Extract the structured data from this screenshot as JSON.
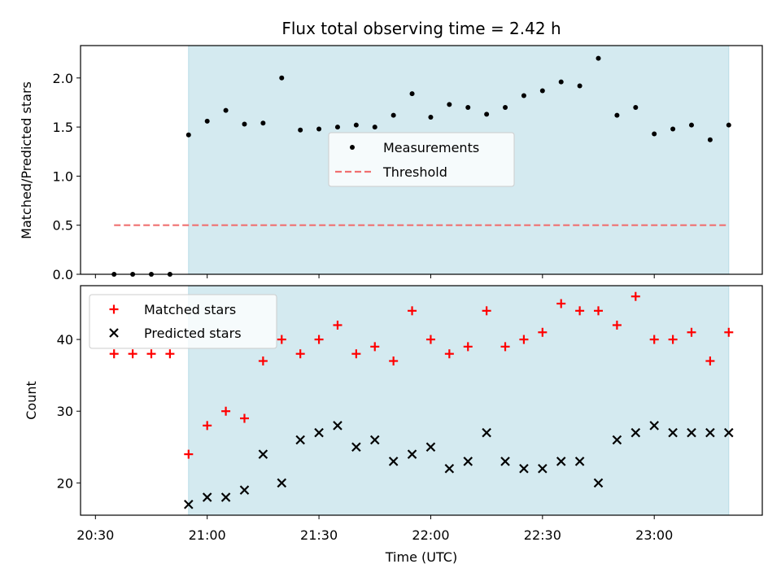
{
  "chart_data": [
    {
      "type": "scatter",
      "title": "Flux total observing time = 2.42 h",
      "xlabel": "",
      "ylabel": "Matched/Predicted stars",
      "ylim": [
        0,
        2.33
      ],
      "yticks": [
        "0.0",
        "0.5",
        "1.0",
        "1.5",
        "2.0"
      ],
      "shaded_region": {
        "start": "20:55",
        "end": "23:20",
        "color": "#d4eaf0"
      },
      "threshold_line": {
        "value": 0.5,
        "from": "20:35",
        "to": "23:20",
        "color": "#f07070"
      },
      "legend": {
        "placement": "center",
        "entries": [
          "Measurements",
          "Threshold"
        ]
      },
      "series": [
        {
          "name": "Measurements",
          "x": [
            "20:35",
            "20:40",
            "20:45",
            "20:50",
            "20:55",
            "21:00",
            "21:05",
            "21:10",
            "21:15",
            "21:20",
            "21:25",
            "21:30",
            "21:35",
            "21:40",
            "21:45",
            "21:50",
            "21:55",
            "22:00",
            "22:05",
            "22:10",
            "22:15",
            "22:20",
            "22:25",
            "22:30",
            "22:35",
            "22:40",
            "22:45",
            "22:50",
            "22:55",
            "23:00",
            "23:05",
            "23:10",
            "23:15",
            "23:20"
          ],
          "values": [
            0,
            0,
            0,
            0,
            1.42,
            1.56,
            1.67,
            1.53,
            1.54,
            2.0,
            1.47,
            1.48,
            1.5,
            1.52,
            1.5,
            1.62,
            1.84,
            1.6,
            1.73,
            1.7,
            1.63,
            1.7,
            1.82,
            1.87,
            1.96,
            1.92,
            2.2,
            1.62,
            1.7,
            1.43,
            1.48,
            1.52,
            1.37,
            1.52
          ]
        }
      ]
    },
    {
      "type": "scatter",
      "xlabel": "Time (UTC)",
      "ylabel": "Count",
      "ylim": [
        15.5,
        47.5
      ],
      "yticks": [
        "20",
        "30",
        "40"
      ],
      "xticks": [
        "20:30",
        "21:00",
        "21:30",
        "22:00",
        "22:30",
        "23:00"
      ],
      "xlim": [
        "20:26",
        "23:29"
      ],
      "legend": {
        "placement": "upper left",
        "entries": [
          "Matched stars",
          "Predicted stars"
        ]
      },
      "series": [
        {
          "name": "Matched stars",
          "marker": "+",
          "color": "#ff0000",
          "x": [
            "20:35",
            "20:40",
            "20:45",
            "20:50",
            "20:55",
            "21:00",
            "21:05",
            "21:10",
            "21:15",
            "21:20",
            "21:25",
            "21:30",
            "21:35",
            "21:40",
            "21:45",
            "21:50",
            "21:55",
            "22:00",
            "22:05",
            "22:10",
            "22:15",
            "22:20",
            "22:25",
            "22:30",
            "22:35",
            "22:40",
            "22:45",
            "22:50",
            "22:55",
            "23:00",
            "23:05",
            "23:10",
            "23:15",
            "23:20"
          ],
          "values": [
            38,
            38,
            38,
            38,
            24,
            28,
            30,
            29,
            37,
            40,
            38,
            40,
            42,
            38,
            39,
            37,
            44,
            40,
            38,
            39,
            44,
            39,
            40,
            41,
            45,
            44,
            44,
            42,
            46,
            40,
            40,
            41,
            37,
            41
          ]
        },
        {
          "name": "Predicted stars",
          "marker": "x",
          "color": "#000000",
          "x": [
            "20:55",
            "21:00",
            "21:05",
            "21:10",
            "21:15",
            "21:20",
            "21:25",
            "21:30",
            "21:35",
            "21:40",
            "21:45",
            "21:50",
            "21:55",
            "22:00",
            "22:05",
            "22:10",
            "22:15",
            "22:20",
            "22:25",
            "22:30",
            "22:35",
            "22:40",
            "22:45",
            "22:50",
            "22:55",
            "23:00",
            "23:05",
            "23:10",
            "23:15",
            "23:20"
          ],
          "values": [
            17,
            18,
            18,
            19,
            24,
            20,
            26,
            27,
            28,
            25,
            26,
            23,
            24,
            25,
            22,
            23,
            27,
            23,
            22,
            22,
            23,
            23,
            20,
            26,
            27,
            28,
            27,
            27,
            27,
            27
          ]
        }
      ]
    }
  ]
}
